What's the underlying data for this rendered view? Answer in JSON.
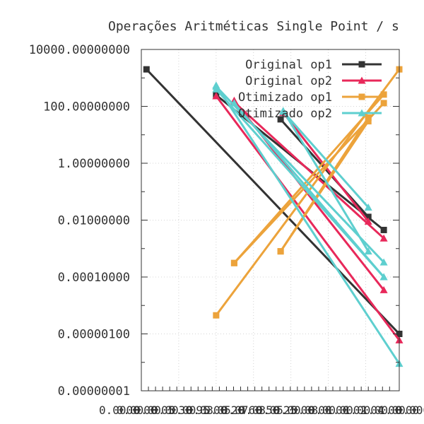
{
  "chart_data": {
    "type": "line",
    "title": "Operações Aritméticas Single Point / s",
    "xlabel": "",
    "ylabel": "",
    "y_scale": "log",
    "ylim": [
      1e-08,
      10000
    ],
    "xlim": [
      0,
      1
    ],
    "y_tick_labels": [
      "10000.00000000",
      "100.00000000",
      "1.00000000",
      "0.01000000",
      "0.00010000",
      "0.00000100",
      "0.00000001"
    ],
    "x_tick_labels": [
      "0.0000",
      "0.0000",
      "0.0005",
      "0.0030",
      "0.0095",
      "0.0300",
      "0.0520",
      "0.0760",
      "0.0350",
      "0.0525",
      "0.0000",
      "0.0800",
      "0.0000",
      "1.0002",
      "1.0004",
      "1.0000",
      "1.0000",
      "0.0000"
    ],
    "grid": true,
    "legend_position": "top-right",
    "series": [
      {
        "name": "Original op1",
        "color": "#333333",
        "marker": "square",
        "segments": [
          [
            [
              0.02,
              2000
            ],
            [
              1.0,
              1e-06
            ]
          ],
          [
            [
              0.29,
              250
            ],
            [
              0.94,
              0.0045
            ]
          ],
          [
            [
              0.54,
              35
            ],
            [
              0.88,
              0.013
            ]
          ]
        ]
      },
      {
        "name": "Original op2",
        "color": "#e8285a",
        "marker": "triangle",
        "segments": [
          [
            [
              0.29,
              230
            ],
            [
              1.0,
              6e-07
            ]
          ],
          [
            [
              0.36,
              140
            ],
            [
              0.94,
              0.0023
            ]
          ],
          [
            [
              0.55,
              60
            ],
            [
              0.88,
              0.009
            ]
          ],
          [
            [
              0.36,
              160
            ],
            [
              0.94,
              3.5e-05
            ]
          ]
        ]
      },
      {
        "name": "Otimizado op1",
        "color": "#eca33b",
        "marker": "square",
        "segments": [
          [
            [
              0.29,
              4.5e-06
            ],
            [
              1.0,
              2000
            ]
          ],
          [
            [
              0.36,
              0.00031
            ],
            [
              0.94,
              130
            ]
          ],
          [
            [
              0.54,
              0.0008
            ],
            [
              0.88,
              30
            ]
          ],
          [
            [
              0.36,
              0.00031
            ],
            [
              0.94,
              260
            ]
          ],
          [
            [
              0.54,
              0.0008
            ],
            [
              0.88,
              40
            ]
          ]
        ]
      },
      {
        "name": "Otimizado op2",
        "color": "#5ecfcf",
        "marker": "triangle",
        "segments": [
          [
            [
              0.29,
              550
            ],
            [
              1.0,
              9e-08
            ]
          ],
          [
            [
              0.36,
              130
            ],
            [
              0.94,
              0.0001
            ]
          ],
          [
            [
              0.55,
              65
            ],
            [
              0.88,
              0.028
            ]
          ],
          [
            [
              0.29,
              500
            ],
            [
              0.94,
              0.00033
            ]
          ],
          [
            [
              0.55,
              70
            ],
            [
              0.88,
              0.0008
            ]
          ],
          [
            [
              0.29,
              400
            ],
            [
              0.94,
              0.0001
            ]
          ]
        ]
      }
    ]
  }
}
